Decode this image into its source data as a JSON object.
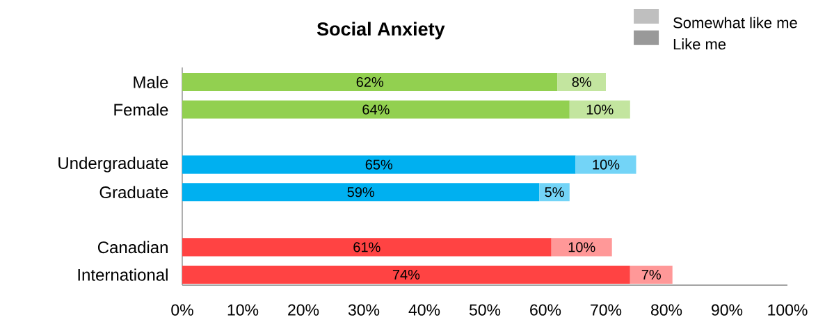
{
  "chart_data": {
    "type": "bar",
    "orientation": "horizontal",
    "stacked": true,
    "title": "Social Anxiety",
    "categories": [
      "Male",
      "Female",
      null,
      "Undergraduate",
      "Graduate",
      null,
      "Canadian",
      "International"
    ],
    "series": [
      {
        "name": "Somewhat like me",
        "color": "#bfbfbf",
        "colors": [
          "#92d050",
          "#92d050",
          null,
          "#00b0f0",
          "#00b0f0",
          null,
          "#ff4343",
          "#ff4343"
        ],
        "values": [
          62,
          64,
          null,
          65,
          59,
          null,
          61,
          74
        ],
        "value_labels": [
          "62%",
          "64%",
          null,
          "65%",
          "59%",
          null,
          "61%",
          "74%"
        ]
      },
      {
        "name": "Like me",
        "color": "#999999",
        "colors": [
          "#c3e59f",
          "#c3e59f",
          null,
          "#73d4f7",
          "#73d4f7",
          null,
          "#ff9898",
          "#ff9898"
        ],
        "values": [
          8,
          10,
          null,
          10,
          5,
          null,
          10,
          7
        ],
        "value_labels": [
          "8%",
          "10%",
          null,
          "10%",
          "5%",
          null,
          "10%",
          "7%"
        ]
      }
    ],
    "xlim": [
      0,
      100
    ],
    "xticks": [
      {
        "value": 0,
        "label": "0%"
      },
      {
        "value": 10,
        "label": "10%"
      },
      {
        "value": 20,
        "label": "20%"
      },
      {
        "value": 30,
        "label": "30%"
      },
      {
        "value": 40,
        "label": "40%"
      },
      {
        "value": 50,
        "label": "50%"
      },
      {
        "value": 60,
        "label": "60%"
      },
      {
        "value": 70,
        "label": "70%"
      },
      {
        "value": 80,
        "label": "80%"
      },
      {
        "value": 90,
        "label": "90%"
      },
      {
        "value": 100,
        "label": "100%"
      }
    ],
    "legend": "top right"
  }
}
